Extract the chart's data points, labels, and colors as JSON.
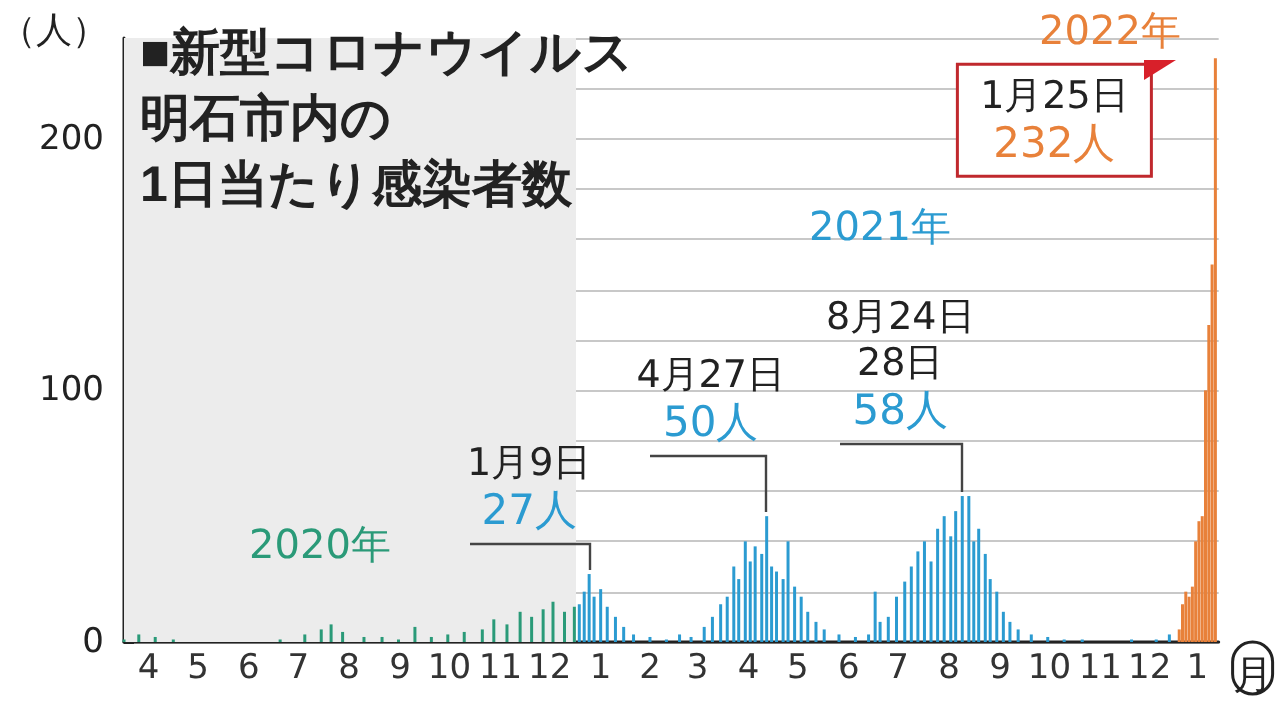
{
  "chart_data": {
    "type": "bar",
    "title": "■新型コロナウイルス明石市内の1日当たり感染者数",
    "ylabel": "（人）",
    "xlabel": "月",
    "xlim": [
      "2020-04-01",
      "2022-01-27"
    ],
    "xticks": [
      {
        "value": "2020-04-16",
        "label": "4"
      },
      {
        "value": "2020-05-16",
        "label": "5"
      },
      {
        "value": "2020-06-16",
        "label": "6"
      },
      {
        "value": "2020-07-16",
        "label": "7"
      },
      {
        "value": "2020-08-16",
        "label": "8"
      },
      {
        "value": "2020-09-16",
        "label": "9"
      },
      {
        "value": "2020-10-16",
        "label": "10"
      },
      {
        "value": "2020-11-16",
        "label": "11"
      },
      {
        "value": "2020-12-16",
        "label": "12"
      },
      {
        "value": "2021-01-16",
        "label": "1"
      },
      {
        "value": "2021-02-15",
        "label": "2"
      },
      {
        "value": "2021-03-16",
        "label": "3"
      },
      {
        "value": "2021-04-16",
        "label": "4"
      },
      {
        "value": "2021-05-16",
        "label": "5"
      },
      {
        "value": "2021-06-16",
        "label": "6"
      },
      {
        "value": "2021-07-16",
        "label": "7"
      },
      {
        "value": "2021-08-16",
        "label": "8"
      },
      {
        "value": "2021-09-16",
        "label": "9"
      },
      {
        "value": "2021-10-16",
        "label": "10"
      },
      {
        "value": "2021-11-16",
        "label": "11"
      },
      {
        "value": "2021-12-16",
        "label": "12"
      },
      {
        "value": "2022-01-14",
        "label": "1"
      }
    ],
    "ylim": [
      0,
      240
    ],
    "yticks": [
      0,
      {
        "value": 20,
        "label": null
      },
      {
        "value": 40,
        "label": null
      },
      {
        "value": 60,
        "label": null
      },
      {
        "value": 80,
        "label": null
      },
      100,
      {
        "value": 120,
        "label": null
      },
      {
        "value": 140,
        "label": null
      },
      {
        "value": 160,
        "label": null
      },
      {
        "value": 180,
        "label": null
      },
      200,
      {
        "value": 220,
        "label": null
      },
      {
        "value": 240,
        "label": null
      }
    ],
    "grid": "y",
    "bands": [
      {
        "axis": "x",
        "from": "2020-04-01",
        "to": "2021-01-01",
        "color": "#ececec"
      }
    ],
    "series": [
      {
        "name": "2020年",
        "color": "#2a9a78",
        "x": [
          "2020-04-01",
          "2020-04-10",
          "2020-04-20",
          "2020-05-01",
          "2020-05-15",
          "2020-06-01",
          "2020-06-20",
          "2020-07-05",
          "2020-07-20",
          "2020-07-30",
          "2020-08-05",
          "2020-08-12",
          "2020-08-25",
          "2020-09-05",
          "2020-09-15",
          "2020-09-25",
          "2020-10-05",
          "2020-10-15",
          "2020-10-25",
          "2020-11-05",
          "2020-11-12",
          "2020-11-20",
          "2020-11-28",
          "2020-12-05",
          "2020-12-12",
          "2020-12-18",
          "2020-12-25",
          "2020-12-31"
        ],
        "values": [
          1,
          3,
          2,
          1,
          0,
          0,
          0,
          1,
          3,
          5,
          7,
          4,
          2,
          2,
          1,
          6,
          2,
          3,
          4,
          5,
          9,
          7,
          12,
          10,
          13,
          16,
          12,
          14
        ]
      },
      {
        "name": "2021年",
        "color": "#2b9bd1",
        "x": [
          "2021-01-03",
          "2021-01-06",
          "2021-01-09",
          "2021-01-12",
          "2021-01-16",
          "2021-01-20",
          "2021-01-25",
          "2021-01-30",
          "2021-02-05",
          "2021-02-15",
          "2021-02-25",
          "2021-03-05",
          "2021-03-12",
          "2021-03-20",
          "2021-03-25",
          "2021-03-30",
          "2021-04-03",
          "2021-04-07",
          "2021-04-10",
          "2021-04-14",
          "2021-04-17",
          "2021-04-20",
          "2021-04-24",
          "2021-04-27",
          "2021-04-30",
          "2021-05-03",
          "2021-05-07",
          "2021-05-10",
          "2021-05-14",
          "2021-05-18",
          "2021-05-22",
          "2021-05-27",
          "2021-06-01",
          "2021-06-10",
          "2021-06-20",
          "2021-06-28",
          "2021-07-02",
          "2021-07-05",
          "2021-07-10",
          "2021-07-15",
          "2021-07-20",
          "2021-07-24",
          "2021-07-28",
          "2021-08-01",
          "2021-08-05",
          "2021-08-09",
          "2021-08-13",
          "2021-08-17",
          "2021-08-20",
          "2021-08-24",
          "2021-08-28",
          "2021-08-31",
          "2021-09-03",
          "2021-09-07",
          "2021-09-10",
          "2021-09-14",
          "2021-09-18",
          "2021-09-22",
          "2021-09-27",
          "2021-10-05",
          "2021-10-15",
          "2021-10-25",
          "2021-11-05",
          "2021-11-20",
          "2021-12-05",
          "2021-12-20",
          "2021-12-28"
        ],
        "values": [
          15,
          20,
          27,
          18,
          21,
          14,
          10,
          6,
          3,
          2,
          1,
          3,
          2,
          6,
          10,
          15,
          18,
          30,
          25,
          40,
          32,
          38,
          35,
          50,
          30,
          28,
          25,
          40,
          22,
          18,
          12,
          8,
          5,
          3,
          2,
          3,
          20,
          8,
          10,
          18,
          24,
          30,
          36,
          40,
          32,
          45,
          50,
          42,
          52,
          58,
          58,
          40,
          45,
          35,
          25,
          20,
          12,
          8,
          5,
          3,
          2,
          1,
          1,
          0,
          1,
          1,
          3
        ]
      },
      {
        "name": "2022年",
        "color": "#e8813a",
        "x": [
          "2022-01-03",
          "2022-01-05",
          "2022-01-07",
          "2022-01-09",
          "2022-01-11",
          "2022-01-13",
          "2022-01-15",
          "2022-01-17",
          "2022-01-19",
          "2022-01-21",
          "2022-01-23",
          "2022-01-25"
        ],
        "values": [
          5,
          15,
          20,
          18,
          22,
          40,
          48,
          50,
          100,
          126,
          150,
          232
        ]
      }
    ],
    "annotations": [
      {
        "text": "1月9日\n27人",
        "x": "2021-01-09",
        "y": 27
      },
      {
        "text": "4月27日\n50人",
        "x": "2021-04-27",
        "y": 50
      },
      {
        "text": "8月24日\n28日\n58人",
        "x": "2021-08-24",
        "y": 58
      },
      {
        "text": "1月25日\n232人",
        "x": "2022-01-25",
        "y": 232
      }
    ]
  }
}
